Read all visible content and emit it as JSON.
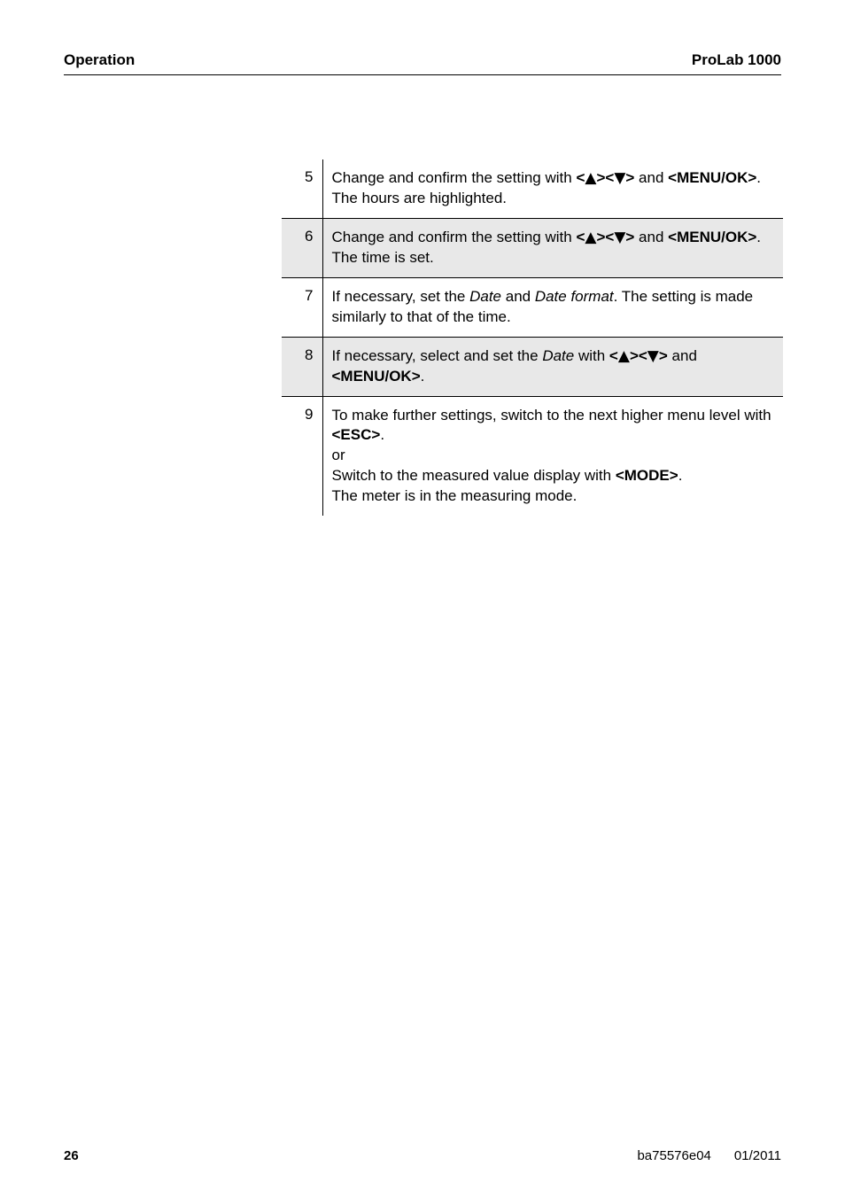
{
  "header": {
    "left": "Operation",
    "right": "ProLab 1000"
  },
  "rows": [
    {
      "num": "5",
      "shaded": false,
      "html": "Change and confirm the setting with <b>&lt;<span class=\"tri\">▲</span>&gt;&lt;<span class=\"tri\">▼</span>&gt;</b> and <b>&lt;MENU/OK&gt;</b>.<br>The hours are highlighted."
    },
    {
      "num": "6",
      "shaded": true,
      "html": "Change and confirm the setting with <b>&lt;<span class=\"tri\">▲</span>&gt;&lt;<span class=\"tri\">▼</span>&gt;</b> and <b>&lt;MENU/OK&gt;</b>.<br>The time is set."
    },
    {
      "num": "7",
      "shaded": false,
      "html": "If necessary, set the <span class=\"ital\">Date</span> and <span class=\"ital\">Date format</span>. The setting is made similarly to that of the time."
    },
    {
      "num": "8",
      "shaded": true,
      "html": "If necessary, select and set the <span class=\"ital\">Date</span> with <b>&lt;<span class=\"tri\">▲</span>&gt;&lt;<span class=\"tri\">▼</span>&gt;</b> and <b>&lt;MENU/OK&gt;</b>."
    },
    {
      "num": "9",
      "shaded": false,
      "last": true,
      "html": "To make further settings, switch to the next higher menu level with <b>&lt;ESC&gt;</b>.<br>or<br>Switch to the measured value display with <b>&lt;MODE&gt;</b>.<br>The meter is in the measuring mode."
    }
  ],
  "footer": {
    "pageNumber": "26",
    "docId": "ba75576e04",
    "date": "01/2011"
  }
}
